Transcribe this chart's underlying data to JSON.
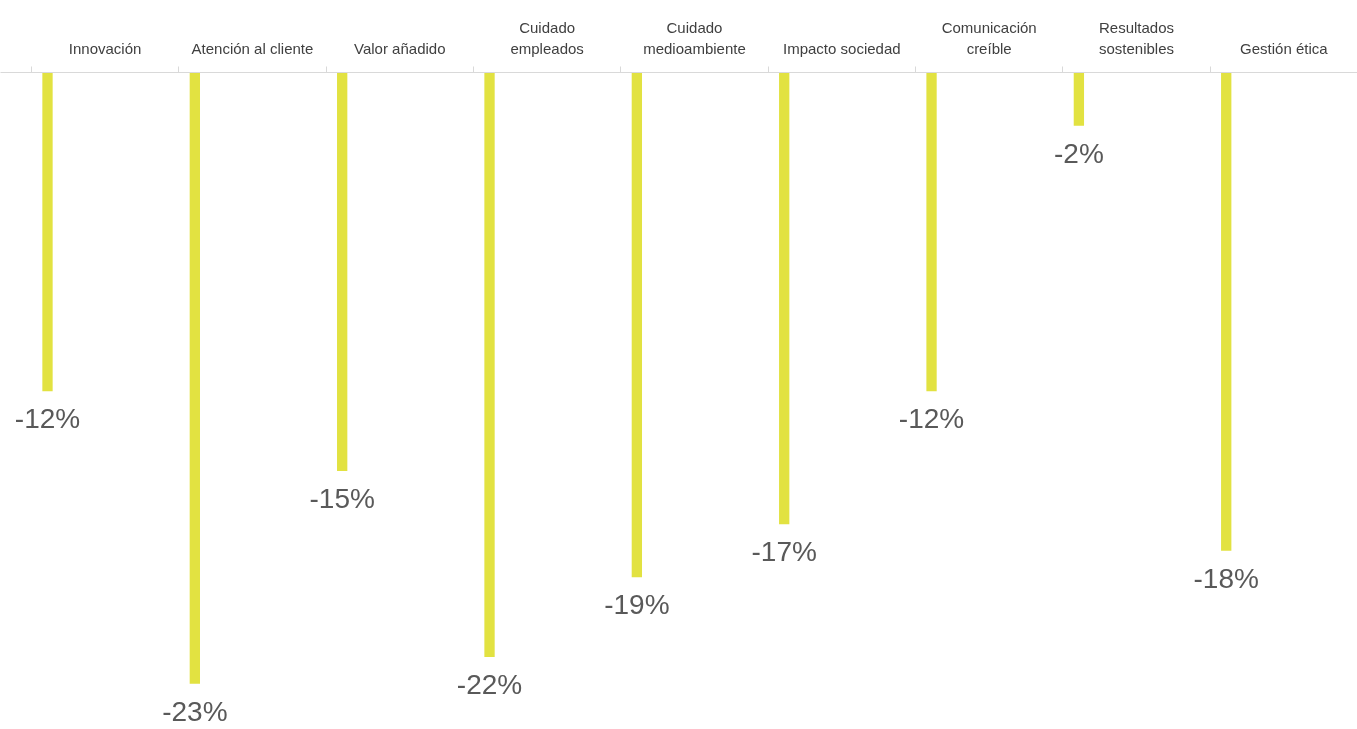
{
  "chart_data": {
    "type": "bar",
    "categories": [
      "Innovación",
      "Atención al cliente",
      "Valor añadido",
      "Cuidado\nempleados",
      "Cuidado\nmedioambiente",
      "Impacto sociedad",
      "Comunicación\ncreíble",
      "Resultados\nsostenibles",
      "Gestión ética"
    ],
    "values": [
      -12,
      -23,
      -15,
      -22,
      -19,
      -17,
      -12,
      -2,
      -18
    ],
    "value_labels": [
      "-12%",
      "-23%",
      "-15%",
      "-22%",
      "-19%",
      "-17%",
      "-12%",
      "-2%",
      "-18%"
    ],
    "color": "#e2e241",
    "grid": false
  }
}
